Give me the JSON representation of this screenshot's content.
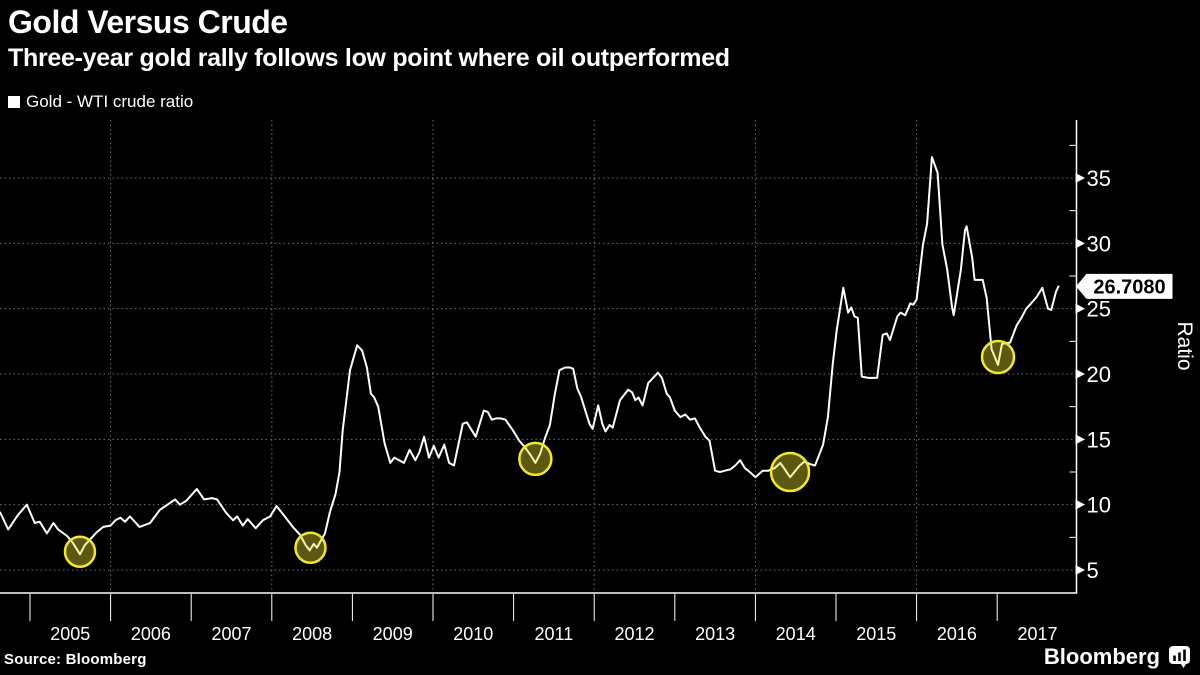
{
  "header": {
    "title": "Gold Versus Crude",
    "subtitle": "Three-year gold rally follows low point where oil outperformed"
  },
  "legend": {
    "label": "Gold - WTI crude ratio",
    "swatch_color": "#ffffff"
  },
  "footer": {
    "source": "Source: Bloomberg",
    "brand": "Bloomberg"
  },
  "colors": {
    "background": "#000000",
    "line": "#ffffff",
    "grid": "#6f6f6f",
    "axis": "#ffffff",
    "highlight_ring": "#f3e72c",
    "highlight_fill": "rgba(243,231,44,0.38)",
    "flag_bg": "#ffffff",
    "flag_text": "#000000"
  },
  "chart_data": {
    "type": "line",
    "title": "Gold Versus Crude",
    "series_name": "Gold - WTI crude ratio",
    "xlabel": "",
    "ylabel": "Ratio",
    "legend_position": "top-left",
    "grid": "dotted",
    "ylim": [
      3.2,
      39.6
    ],
    "xlim": [
      2004.63,
      2018.0
    ],
    "y_ticks": [
      5,
      10,
      15,
      20,
      25,
      30,
      35
    ],
    "y_minor_ticks": [
      7.5,
      12.5,
      17.5,
      22.5,
      27.5,
      32.5,
      37.5
    ],
    "x_year_labels": [
      "2005",
      "2006",
      "2007",
      "2008",
      "2009",
      "2010",
      "2011",
      "2012",
      "2013",
      "2014",
      "2015",
      "2016",
      "2017"
    ],
    "x_year_starts": [
      2005,
      2006,
      2007,
      2008,
      2009,
      2010,
      2011,
      2012,
      2013,
      2014,
      2015,
      2016,
      2017
    ],
    "x_gridline_years": [
      2006,
      2008,
      2010,
      2012,
      2014,
      2016
    ],
    "last_value": 26.708,
    "last_value_label": "26.7080",
    "points": [
      [
        2004.63,
        9.4
      ],
      [
        2004.73,
        8.1
      ],
      [
        2004.85,
        9.2
      ],
      [
        2004.96,
        10.0
      ],
      [
        2005.06,
        8.6
      ],
      [
        2005.12,
        8.7
      ],
      [
        2005.21,
        7.8
      ],
      [
        2005.29,
        8.6
      ],
      [
        2005.35,
        8.1
      ],
      [
        2005.46,
        7.6
      ],
      [
        2005.53,
        7.1
      ],
      [
        2005.62,
        6.2
      ],
      [
        2005.68,
        6.9
      ],
      [
        2005.74,
        7.3
      ],
      [
        2005.83,
        7.9
      ],
      [
        2005.91,
        8.3
      ],
      [
        2006.0,
        8.4
      ],
      [
        2006.06,
        8.8
      ],
      [
        2006.12,
        9.0
      ],
      [
        2006.18,
        8.7
      ],
      [
        2006.24,
        9.1
      ],
      [
        2006.36,
        8.3
      ],
      [
        2006.49,
        8.6
      ],
      [
        2006.61,
        9.6
      ],
      [
        2006.8,
        10.4
      ],
      [
        2006.86,
        10.0
      ],
      [
        2006.94,
        10.3
      ],
      [
        2007.07,
        11.2
      ],
      [
        2007.16,
        10.4
      ],
      [
        2007.26,
        10.5
      ],
      [
        2007.32,
        10.4
      ],
      [
        2007.43,
        9.4
      ],
      [
        2007.52,
        8.8
      ],
      [
        2007.57,
        9.1
      ],
      [
        2007.64,
        8.4
      ],
      [
        2007.7,
        8.9
      ],
      [
        2007.8,
        8.2
      ],
      [
        2007.89,
        8.8
      ],
      [
        2007.98,
        9.1
      ],
      [
        2008.06,
        9.9
      ],
      [
        2008.16,
        9.1
      ],
      [
        2008.26,
        8.3
      ],
      [
        2008.35,
        7.7
      ],
      [
        2008.42,
        6.9
      ],
      [
        2008.47,
        6.5
      ],
      [
        2008.52,
        7.0
      ],
      [
        2008.56,
        6.7
      ],
      [
        2008.66,
        7.8
      ],
      [
        2008.72,
        9.4
      ],
      [
        2008.79,
        10.8
      ],
      [
        2008.84,
        12.5
      ],
      [
        2008.88,
        15.7
      ],
      [
        2008.97,
        20.3
      ],
      [
        2009.06,
        22.2
      ],
      [
        2009.12,
        21.8
      ],
      [
        2009.18,
        20.5
      ],
      [
        2009.23,
        18.5
      ],
      [
        2009.27,
        18.2
      ],
      [
        2009.32,
        17.5
      ],
      [
        2009.4,
        14.7
      ],
      [
        2009.47,
        13.2
      ],
      [
        2009.52,
        13.6
      ],
      [
        2009.58,
        13.4
      ],
      [
        2009.64,
        13.2
      ],
      [
        2009.71,
        14.2
      ],
      [
        2009.78,
        13.4
      ],
      [
        2009.83,
        14.0
      ],
      [
        2009.89,
        15.2
      ],
      [
        2009.95,
        13.6
      ],
      [
        2010.01,
        14.5
      ],
      [
        2010.07,
        13.6
      ],
      [
        2010.14,
        14.6
      ],
      [
        2010.2,
        13.2
      ],
      [
        2010.26,
        13.0
      ],
      [
        2010.37,
        16.2
      ],
      [
        2010.42,
        16.3
      ],
      [
        2010.53,
        15.2
      ],
      [
        2010.63,
        17.2
      ],
      [
        2010.68,
        17.1
      ],
      [
        2010.73,
        16.5
      ],
      [
        2010.78,
        16.6
      ],
      [
        2010.84,
        16.6
      ],
      [
        2010.9,
        16.5
      ],
      [
        2010.99,
        15.7
      ],
      [
        2011.07,
        14.9
      ],
      [
        2011.14,
        14.4
      ],
      [
        2011.21,
        13.8
      ],
      [
        2011.27,
        13.2
      ],
      [
        2011.33,
        13.9
      ],
      [
        2011.39,
        15.1
      ],
      [
        2011.45,
        16.1
      ],
      [
        2011.51,
        18.4
      ],
      [
        2011.57,
        20.3
      ],
      [
        2011.64,
        20.5
      ],
      [
        2011.7,
        20.5
      ],
      [
        2011.74,
        20.4
      ],
      [
        2011.79,
        18.9
      ],
      [
        2011.84,
        18.2
      ],
      [
        2011.89,
        17.2
      ],
      [
        2011.94,
        16.2
      ],
      [
        2011.98,
        15.8
      ],
      [
        2012.05,
        17.6
      ],
      [
        2012.1,
        16.2
      ],
      [
        2012.14,
        15.6
      ],
      [
        2012.19,
        16.1
      ],
      [
        2012.23,
        15.9
      ],
      [
        2012.32,
        18.0
      ],
      [
        2012.42,
        18.8
      ],
      [
        2012.47,
        18.6
      ],
      [
        2012.51,
        18.0
      ],
      [
        2012.55,
        18.2
      ],
      [
        2012.6,
        17.6
      ],
      [
        2012.67,
        19.3
      ],
      [
        2012.76,
        19.9
      ],
      [
        2012.79,
        20.1
      ],
      [
        2012.84,
        19.7
      ],
      [
        2012.9,
        18.5
      ],
      [
        2012.94,
        18.2
      ],
      [
        2013.0,
        17.2
      ],
      [
        2013.07,
        16.7
      ],
      [
        2013.13,
        16.9
      ],
      [
        2013.19,
        16.5
      ],
      [
        2013.25,
        16.6
      ],
      [
        2013.31,
        15.9
      ],
      [
        2013.38,
        15.2
      ],
      [
        2013.43,
        14.9
      ],
      [
        2013.5,
        12.6
      ],
      [
        2013.56,
        12.5
      ],
      [
        2013.62,
        12.6
      ],
      [
        2013.69,
        12.7
      ],
      [
        2013.75,
        13.0
      ],
      [
        2013.81,
        13.4
      ],
      [
        2013.87,
        12.8
      ],
      [
        2013.93,
        12.5
      ],
      [
        2014.0,
        12.1
      ],
      [
        2014.09,
        12.6
      ],
      [
        2014.16,
        12.6
      ],
      [
        2014.24,
        12.8
      ],
      [
        2014.31,
        13.2
      ],
      [
        2014.43,
        12.1
      ],
      [
        2014.55,
        13.0
      ],
      [
        2014.61,
        13.3
      ],
      [
        2014.68,
        13.1
      ],
      [
        2014.74,
        13.0
      ],
      [
        2014.84,
        14.6
      ],
      [
        2014.9,
        16.7
      ],
      [
        2014.96,
        20.8
      ],
      [
        2015.01,
        23.4
      ],
      [
        2015.09,
        26.6
      ],
      [
        2015.15,
        24.7
      ],
      [
        2015.19,
        25.1
      ],
      [
        2015.23,
        24.4
      ],
      [
        2015.27,
        24.3
      ],
      [
        2015.32,
        19.8
      ],
      [
        2015.4,
        19.7
      ],
      [
        2015.51,
        19.7
      ],
      [
        2015.58,
        23.0
      ],
      [
        2015.63,
        23.1
      ],
      [
        2015.67,
        22.6
      ],
      [
        2015.76,
        24.4
      ],
      [
        2015.8,
        24.7
      ],
      [
        2015.86,
        24.5
      ],
      [
        2015.92,
        25.4
      ],
      [
        2015.96,
        25.3
      ],
      [
        2016.0,
        25.7
      ],
      [
        2016.08,
        29.9
      ],
      [
        2016.13,
        31.5
      ],
      [
        2016.19,
        36.6
      ],
      [
        2016.26,
        35.4
      ],
      [
        2016.32,
        29.9
      ],
      [
        2016.38,
        28.0
      ],
      [
        2016.44,
        25.1
      ],
      [
        2016.46,
        24.5
      ],
      [
        2016.55,
        28.0
      ],
      [
        2016.6,
        31.0
      ],
      [
        2016.62,
        31.3
      ],
      [
        2016.69,
        28.9
      ],
      [
        2016.72,
        27.2
      ],
      [
        2016.82,
        27.2
      ],
      [
        2016.87,
        25.8
      ],
      [
        2016.93,
        21.9
      ],
      [
        2017.01,
        20.7
      ],
      [
        2017.06,
        22.3
      ],
      [
        2017.16,
        22.4
      ],
      [
        2017.24,
        23.7
      ],
      [
        2017.3,
        24.3
      ],
      [
        2017.36,
        25.0
      ],
      [
        2017.42,
        25.4
      ],
      [
        2017.49,
        25.9
      ],
      [
        2017.56,
        26.6
      ],
      [
        2017.63,
        25.0
      ],
      [
        2017.67,
        24.9
      ],
      [
        2017.73,
        26.3
      ],
      [
        2017.76,
        26.7
      ]
    ],
    "low_markers": [
      {
        "year": 2005.62,
        "value": 6.4,
        "radius": 15
      },
      {
        "year": 2008.48,
        "value": 6.7,
        "radius": 15
      },
      {
        "year": 2011.27,
        "value": 13.5,
        "radius": 16
      },
      {
        "year": 2014.43,
        "value": 12.5,
        "radius": 19
      },
      {
        "year": 2017.01,
        "value": 21.3,
        "radius": 16
      }
    ]
  }
}
